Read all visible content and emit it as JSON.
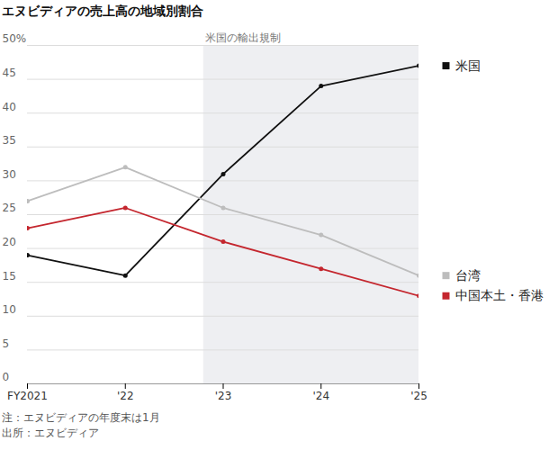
{
  "chart_data": {
    "type": "line",
    "title": "エヌビディアの売上高の地域別割合",
    "x": [
      2021,
      2022,
      2023,
      2024,
      2025
    ],
    "xlim": [
      2021,
      2025
    ],
    "xticks": [
      {
        "value": 2021,
        "label": "FY2021"
      },
      {
        "value": 2022,
        "label": "'22"
      },
      {
        "value": 2023,
        "label": "'23"
      },
      {
        "value": 2024,
        "label": "'24"
      },
      {
        "value": 2025,
        "label": "'25"
      }
    ],
    "ylim": [
      0,
      50
    ],
    "yticks": [
      0,
      5,
      10,
      15,
      20,
      25,
      30,
      35,
      40,
      45,
      {
        "value": 50,
        "label": "50%"
      }
    ],
    "grid": true,
    "legend": "right",
    "marker": "circle",
    "shaded_region": {
      "x0": 2022.8,
      "x1": 2025,
      "label": "米国の輸出規制"
    },
    "series": [
      {
        "name": "米国",
        "color": "#111111",
        "values": [
          19,
          16,
          31,
          44,
          47
        ]
      },
      {
        "name": "台湾",
        "color": "#bdbdbd",
        "values": [
          27,
          32,
          26,
          22,
          16
        ]
      },
      {
        "name": "中国本土・香港",
        "color": "#c4262e",
        "values": [
          23,
          26,
          21,
          17,
          13
        ]
      }
    ],
    "notes": [
      "注：エヌビディアの年度末は1月",
      "出所：エヌビディア"
    ]
  }
}
